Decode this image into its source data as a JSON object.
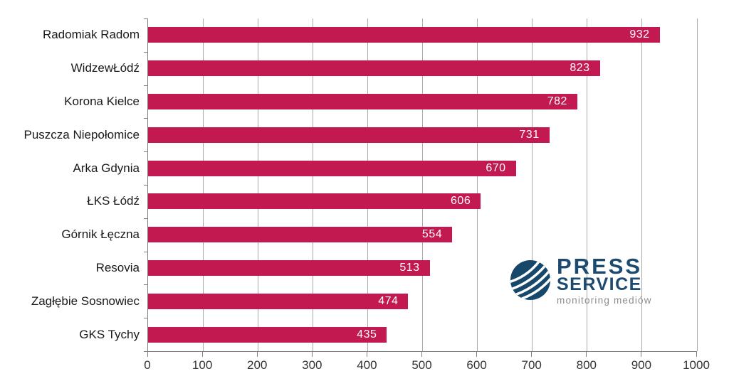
{
  "chart_data": {
    "type": "bar",
    "orientation": "horizontal",
    "title": "",
    "xlabel": "",
    "ylabel": "",
    "categories": [
      "Radomiak Radom",
      "WidzewŁódź",
      "Korona Kielce",
      "Puszcza Niepołomice",
      "Arka Gdynia",
      "ŁKS Łódź",
      "Górnik Łęczna",
      "Resovia",
      "Zagłębie Sosnowiec",
      "GKS Tychy"
    ],
    "values": [
      932,
      823,
      782,
      731,
      670,
      606,
      554,
      513,
      474,
      435
    ],
    "xlim": [
      0,
      1000
    ],
    "x_ticks": [
      0,
      100,
      200,
      300,
      400,
      500,
      600,
      700,
      800,
      900,
      1000
    ],
    "grid": true,
    "legend": false,
    "value_labels": "inside-end",
    "bar_color": "#C21950",
    "value_label_color": "#FFFFFF"
  },
  "colors": {
    "background": "#FFFFFF",
    "gridline": "#A9A9A9",
    "axis": "#808080",
    "tick_text": "#333333",
    "category_text": "#1A1A1A"
  },
  "logo": {
    "line1": "PRESS",
    "line2": "SERVICE",
    "tagline": "monitoring mediów",
    "navy": "#1C4A70",
    "gray": "#8C8C8C",
    "globe_color": "#17486B"
  }
}
